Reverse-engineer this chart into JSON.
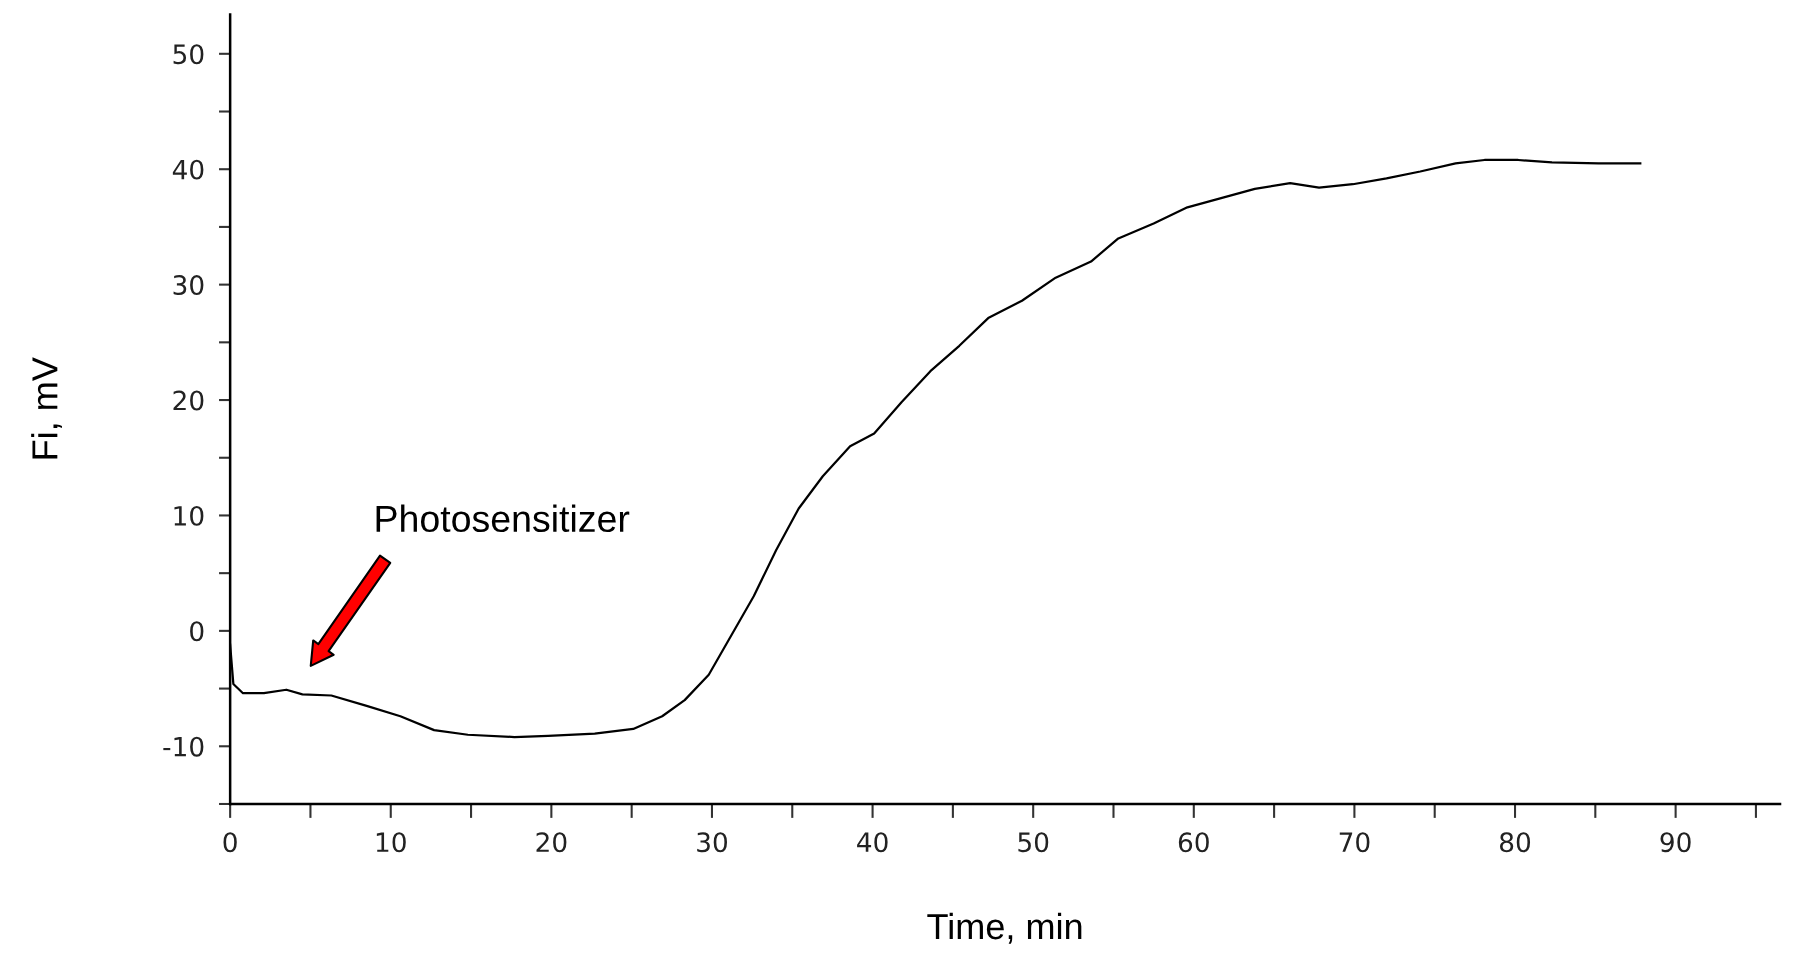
{
  "chart_data": {
    "type": "line",
    "xlabel": "Time, min",
    "ylabel": "Fi, mV",
    "x": [
      0,
      0.2,
      0.8,
      2.1,
      3.5,
      4.5,
      6.3,
      8.5,
      10.6,
      12.7,
      14.8,
      17.7,
      19.8,
      22.7,
      25.1,
      26.9,
      28.3,
      29.8,
      31.2,
      32.6,
      34.0,
      35.4,
      36.9,
      38.6,
      40.1,
      41.8,
      43.6,
      45.4,
      47.2,
      49.3,
      51.4,
      53.6,
      55.3,
      57.5,
      59.6,
      61.7,
      63.8,
      66.0,
      67.8,
      69.9,
      72.0,
      74.1,
      76.3,
      78.1,
      80.2,
      82.3,
      85.2,
      87.8
    ],
    "series": [
      {
        "color": "#000000",
        "values": [
          -1.2,
          -4.6,
          -5.4,
          -5.4,
          -5.1,
          -5.5,
          -5.6,
          -6.5,
          -7.4,
          -8.6,
          -9.0,
          -9.2,
          -9.1,
          -8.9,
          -8.5,
          -7.4,
          -6.0,
          -3.8,
          -0.4,
          3.0,
          7.0,
          10.6,
          13.4,
          16.0,
          17.1,
          19.8,
          22.5,
          24.7,
          27.1,
          28.6,
          30.6,
          32.0,
          34.0,
          35.3,
          36.7,
          37.5,
          38.3,
          38.8,
          38.4,
          38.7,
          39.2,
          39.8,
          40.5,
          40.8,
          40.8,
          40.6,
          40.5,
          40.5
        ]
      }
    ],
    "xlim": [
      0,
      96.5
    ],
    "ylim": [
      -15,
      53.4
    ],
    "xticks": [
      0,
      {
        "value": 5,
        "label": null
      },
      10,
      {
        "value": 15,
        "label": null
      },
      20,
      {
        "value": 25,
        "label": null
      },
      30,
      {
        "value": 35,
        "label": null
      },
      40,
      {
        "value": 45,
        "label": null
      },
      50,
      {
        "value": 55,
        "label": null
      },
      60,
      {
        "value": 65,
        "label": null
      },
      70,
      {
        "value": 75,
        "label": null
      },
      80,
      {
        "value": 85,
        "label": null
      },
      90,
      {
        "value": 95,
        "label": null
      }
    ],
    "yticks": [
      {
        "value": -15,
        "label": null
      },
      -10,
      {
        "value": -5,
        "label": null
      },
      0,
      {
        "value": 5,
        "label": null
      },
      10,
      {
        "value": 15,
        "label": null
      },
      20,
      {
        "value": 25,
        "label": null
      },
      30,
      {
        "value": 35,
        "label": null
      },
      40,
      {
        "value": 45,
        "label": null
      },
      50
    ],
    "annotations": [
      "Photosensitizer"
    ],
    "grid": false,
    "legend": false,
    "marker": "none",
    "line_style": "solid"
  }
}
